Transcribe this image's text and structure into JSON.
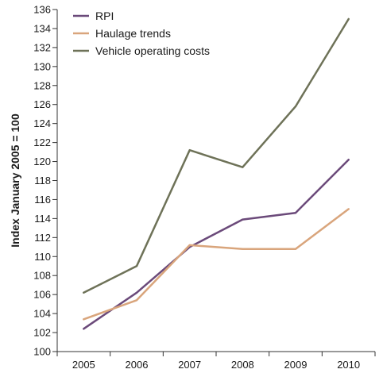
{
  "chart_data": {
    "type": "line",
    "title": "",
    "xlabel": "",
    "ylabel": "Index January 2005 = 100",
    "categories": [
      "2005",
      "2006",
      "2007",
      "2008",
      "2009",
      "2010"
    ],
    "ylim": [
      100,
      136
    ],
    "yticks": [
      100,
      102,
      104,
      106,
      108,
      110,
      112,
      114,
      116,
      118,
      120,
      122,
      124,
      126,
      128,
      130,
      132,
      134,
      136
    ],
    "grid": false,
    "legend_position": "top-left",
    "series": [
      {
        "name": "RPI",
        "color": "#6b4a7a",
        "values": [
          102.4,
          106.2,
          111.0,
          113.9,
          114.6,
          120.2
        ]
      },
      {
        "name": "Haulage trends",
        "color": "#d9a57c",
        "values": [
          103.4,
          105.4,
          111.2,
          110.8,
          110.8,
          115.0
        ]
      },
      {
        "name": "Vehicle operating costs",
        "color": "#6e7258",
        "values": [
          106.2,
          109.0,
          121.2,
          119.4,
          125.8,
          135.0
        ]
      }
    ]
  }
}
